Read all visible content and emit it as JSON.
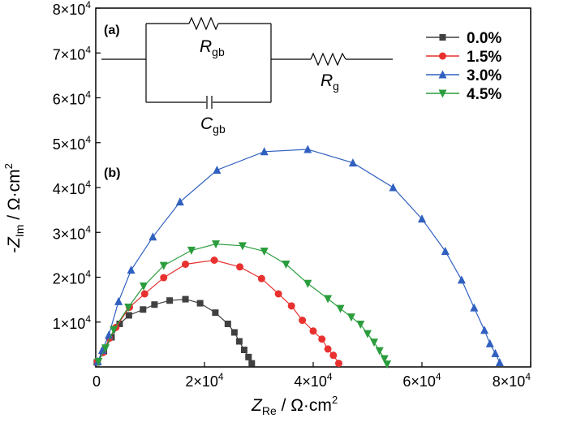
{
  "chart_data": {
    "type": "scatter",
    "panel_a_label": "(a)",
    "panel_b_label": "(b)",
    "circuit": {
      "r_gb": {
        "base": "R",
        "sub": "gb"
      },
      "c_gb": {
        "base": "C",
        "sub": "gb"
      },
      "r_g": {
        "base": "R",
        "sub": "g"
      }
    },
    "xaxis": {
      "label_base": "Z",
      "label_sub": "Re",
      "label_unit": " / Ω·cm",
      "label_sup": "2",
      "min": 0,
      "max": 80000,
      "ticks": [
        {
          "value": 0,
          "mant": "0",
          "exp": ""
        },
        {
          "value": 20000,
          "mant": "2×10",
          "exp": "4"
        },
        {
          "value": 40000,
          "mant": "4×10",
          "exp": "4"
        },
        {
          "value": 60000,
          "mant": "6×10",
          "exp": "4"
        },
        {
          "value": 80000,
          "mant": "8×10",
          "exp": "4"
        }
      ]
    },
    "yaxis": {
      "label_base": "-Z",
      "label_sub": "Im",
      "label_unit": " / Ω·cm",
      "label_sup": "2",
      "min": 0,
      "max": 80000,
      "ticks": [
        {
          "value": 10000,
          "mant": "1×10",
          "exp": "4"
        },
        {
          "value": 20000,
          "mant": "2×10",
          "exp": "4"
        },
        {
          "value": 30000,
          "mant": "3×10",
          "exp": "4"
        },
        {
          "value": 40000,
          "mant": "4×10",
          "exp": "4"
        },
        {
          "value": 50000,
          "mant": "5×10",
          "exp": "4"
        },
        {
          "value": 60000,
          "mant": "6×10",
          "exp": "4"
        },
        {
          "value": 70000,
          "mant": "7×10",
          "exp": "4"
        },
        {
          "value": 80000,
          "mant": "8×10",
          "exp": "4"
        }
      ]
    },
    "legend_position": "top-right",
    "series": [
      {
        "name": "0.0%",
        "color": "#404040",
        "marker": "square",
        "points": [
          [
            200,
            1000
          ],
          [
            1500,
            3500
          ],
          [
            2900,
            6600
          ],
          [
            4400,
            9600
          ],
          [
            6100,
            11500
          ],
          [
            8700,
            12800
          ],
          [
            10800,
            13900
          ],
          [
            13600,
            14800
          ],
          [
            16500,
            15100
          ],
          [
            19200,
            14200
          ],
          [
            22000,
            12100
          ],
          [
            24300,
            9600
          ],
          [
            25500,
            7700
          ],
          [
            26400,
            5700
          ],
          [
            27300,
            3800
          ],
          [
            28100,
            2200
          ],
          [
            28700,
            800
          ]
        ]
      },
      {
        "name": "1.5%",
        "color": "#e8312f",
        "marker": "circle",
        "points": [
          [
            300,
            1200
          ],
          [
            1300,
            3200
          ],
          [
            2500,
            6400
          ],
          [
            3700,
            8800
          ],
          [
            6200,
            13300
          ],
          [
            9000,
            16300
          ],
          [
            12500,
            19900
          ],
          [
            16500,
            22900
          ],
          [
            21800,
            23800
          ],
          [
            26500,
            22300
          ],
          [
            30500,
            19700
          ],
          [
            33600,
            16300
          ],
          [
            36000,
            13600
          ],
          [
            38000,
            10400
          ],
          [
            40000,
            8000
          ],
          [
            41600,
            6200
          ],
          [
            42700,
            4000
          ],
          [
            43700,
            2600
          ],
          [
            44700,
            800
          ]
        ]
      },
      {
        "name": "3.0%",
        "color": "#3060c0",
        "marker": "triangle-up",
        "points": [
          [
            400,
            1200
          ],
          [
            1200,
            3700
          ],
          [
            2400,
            7100
          ],
          [
            4200,
            14600
          ],
          [
            6500,
            21600
          ],
          [
            10500,
            29000
          ],
          [
            15500,
            36800
          ],
          [
            22300,
            43900
          ],
          [
            31000,
            48000
          ],
          [
            39000,
            48500
          ],
          [
            47300,
            45500
          ],
          [
            54700,
            40000
          ],
          [
            60000,
            33000
          ],
          [
            64300,
            25800
          ],
          [
            67300,
            19400
          ],
          [
            69600,
            13200
          ],
          [
            71500,
            8200
          ],
          [
            72500,
            5200
          ],
          [
            73500,
            3000
          ],
          [
            74300,
            1000
          ]
        ]
      },
      {
        "name": "4.5%",
        "color": "#2a9d3c",
        "marker": "triangle-down",
        "points": [
          [
            500,
            1200
          ],
          [
            1800,
            4200
          ],
          [
            3300,
            8300
          ],
          [
            6000,
            13300
          ],
          [
            8800,
            18000
          ],
          [
            12500,
            22600
          ],
          [
            17600,
            26000
          ],
          [
            22100,
            27400
          ],
          [
            27000,
            27000
          ],
          [
            31000,
            25800
          ],
          [
            35000,
            22900
          ],
          [
            39000,
            18600
          ],
          [
            42700,
            15200
          ],
          [
            45000,
            13000
          ],
          [
            47000,
            11100
          ],
          [
            48700,
            9500
          ],
          [
            50000,
            7400
          ],
          [
            51200,
            5500
          ],
          [
            52200,
            3600
          ],
          [
            53100,
            1800
          ],
          [
            53600,
            600
          ]
        ]
      }
    ]
  }
}
